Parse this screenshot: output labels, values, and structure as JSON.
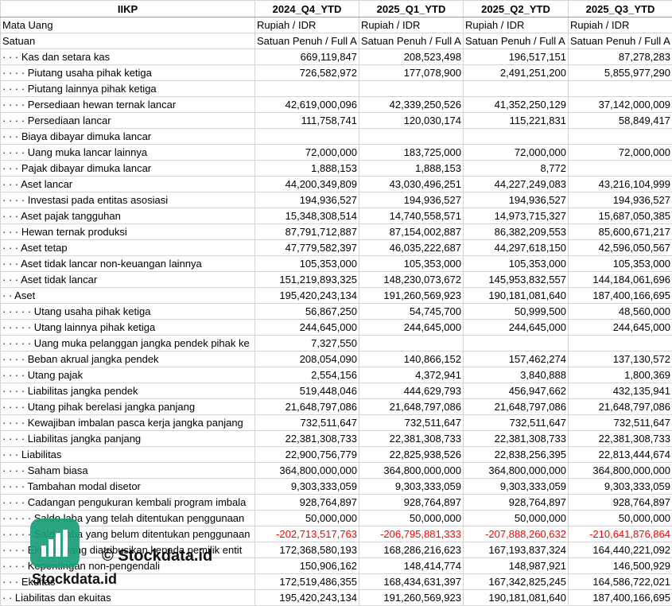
{
  "columns": [
    "IIKP",
    "2024_Q4_YTD",
    "2025_Q1_YTD",
    "2025_Q2_YTD",
    "2025_Q3_YTD"
  ],
  "meta_rows": [
    {
      "label": "Mata Uang",
      "values": [
        "Rupiah / IDR",
        "Rupiah / IDR",
        "Rupiah / IDR",
        "Rupiah / IDR"
      ]
    },
    {
      "label": "Satuan",
      "values": [
        "Satuan Penuh / Full A",
        "Satuan Penuh / Full A",
        "Satuan Penuh / Full A",
        "Satuan Penuh / Full A"
      ]
    }
  ],
  "rows": [
    {
      "label": "· · · Kas dan setara kas",
      "values": [
        "669,119,847",
        "208,523,498",
        "196,517,151",
        "87,278,283"
      ]
    },
    {
      "label": "· · · · Piutang usaha pihak ketiga",
      "values": [
        "726,582,972",
        "177,078,900",
        "2,491,251,200",
        "5,855,977,290"
      ]
    },
    {
      "label": "· · · · Piutang lainnya pihak ketiga",
      "values": [
        "",
        "",
        "",
        ""
      ]
    },
    {
      "label": "· · · · Persediaan hewan ternak lancar",
      "values": [
        "42,619,000,096",
        "42,339,250,526",
        "41,352,250,129",
        "37,142,000,009"
      ]
    },
    {
      "label": "· · · · Persediaan lancar",
      "values": [
        "111,758,741",
        "120,030,174",
        "115,221,831",
        "58,849,417"
      ]
    },
    {
      "label": "· · · Biaya dibayar dimuka lancar",
      "values": [
        "",
        "",
        "",
        ""
      ]
    },
    {
      "label": "· · · · Uang muka lancar lainnya",
      "values": [
        "72,000,000",
        "183,725,000",
        "72,000,000",
        "72,000,000"
      ]
    },
    {
      "label": "· · · Pajak dibayar dimuka lancar",
      "values": [
        "1,888,153",
        "1,888,153",
        "8,772",
        ""
      ]
    },
    {
      "label": "· · · Aset lancar",
      "values": [
        "44,200,349,809",
        "43,030,496,251",
        "44,227,249,083",
        "43,216,104,999"
      ]
    },
    {
      "label": "· · · · Investasi pada entitas asosiasi",
      "values": [
        "194,936,527",
        "194,936,527",
        "194,936,527",
        "194,936,527"
      ]
    },
    {
      "label": "· · · Aset pajak tangguhan",
      "values": [
        "15,348,308,514",
        "14,740,558,571",
        "14,973,715,327",
        "15,687,050,385"
      ]
    },
    {
      "label": "· · · Hewan ternak produksi",
      "values": [
        "87,791,712,887",
        "87,154,002,887",
        "86,382,209,553",
        "85,600,671,217"
      ]
    },
    {
      "label": "· · · Aset tetap",
      "values": [
        "47,779,582,397",
        "46,035,222,687",
        "44,297,618,150",
        "42,596,050,567"
      ]
    },
    {
      "label": "· · · Aset tidak lancar non-keuangan lainnya",
      "values": [
        "105,353,000",
        "105,353,000",
        "105,353,000",
        "105,353,000"
      ]
    },
    {
      "label": "· · · Aset tidak lancar",
      "values": [
        "151,219,893,325",
        "148,230,073,672",
        "145,953,832,557",
        "144,184,061,696"
      ]
    },
    {
      "label": "· · Aset",
      "values": [
        "195,420,243,134",
        "191,260,569,923",
        "190,181,081,640",
        "187,400,166,695"
      ]
    },
    {
      "label": "· · · · · Utang usaha pihak ketiga",
      "values": [
        "56,867,250",
        "54,745,700",
        "50,999,500",
        "48,560,000"
      ]
    },
    {
      "label": "· · · · · Utang lainnya pihak ketiga",
      "values": [
        "244,645,000",
        "244,645,000",
        "244,645,000",
        "244,645,000"
      ]
    },
    {
      "label": "· · · · · Uang muka pelanggan jangka pendek pihak ke",
      "values": [
        "7,327,550",
        "",
        "",
        ""
      ]
    },
    {
      "label": "· · · · Beban akrual jangka pendek",
      "values": [
        "208,054,090",
        "140,866,152",
        "157,462,274",
        "137,130,572"
      ]
    },
    {
      "label": "· · · · Utang pajak",
      "values": [
        "2,554,156",
        "4,372,941",
        "3,840,888",
        "1,800,369"
      ]
    },
    {
      "label": "· · · · Liabilitas jangka pendek",
      "values": [
        "519,448,046",
        "444,629,793",
        "456,947,662",
        "432,135,941"
      ]
    },
    {
      "label": "· · · · Utang pihak berelasi jangka panjang",
      "values": [
        "21,648,797,086",
        "21,648,797,086",
        "21,648,797,086",
        "21,648,797,086"
      ]
    },
    {
      "label": "· · · · Kewajiban imbalan pasca kerja jangka panjang",
      "values": [
        "732,511,647",
        "732,511,647",
        "732,511,647",
        "732,511,647"
      ]
    },
    {
      "label": "· · · · Liabilitas jangka panjang",
      "values": [
        "22,381,308,733",
        "22,381,308,733",
        "22,381,308,733",
        "22,381,308,733"
      ]
    },
    {
      "label": "· · · Liabilitas",
      "values": [
        "22,900,756,779",
        "22,825,938,526",
        "22,838,256,395",
        "22,813,444,674"
      ]
    },
    {
      "label": "· · · · Saham biasa",
      "values": [
        "364,800,000,000",
        "364,800,000,000",
        "364,800,000,000",
        "364,800,000,000"
      ]
    },
    {
      "label": "· · · · Tambahan modal disetor",
      "values": [
        "9,303,333,059",
        "9,303,333,059",
        "9,303,333,059",
        "9,303,333,059"
      ]
    },
    {
      "label": "· · · · Cadangan pengukuran kembali program imbala",
      "values": [
        "928,764,897",
        "928,764,897",
        "928,764,897",
        "928,764,897"
      ]
    },
    {
      "label": "· · · · · Saldo laba yang telah ditentukan penggunaan",
      "values": [
        "50,000,000",
        "50,000,000",
        "50,000,000",
        "50,000,000"
      ]
    },
    {
      "label": "· · · · · Saldo laba yang belum ditentukan penggunaan",
      "values": [
        "-202,713,517,763",
        "-206,795,881,333",
        "-207,888,260,632",
        "-210,641,876,864"
      ],
      "negative": true
    },
    {
      "label": "· · · · Ekuitas yang diatribusikan kepada pemilik entit",
      "values": [
        "172,368,580,193",
        "168,286,216,623",
        "167,193,837,324",
        "164,440,221,092"
      ]
    },
    {
      "label": "· · · · Kepentingan non-pengendali",
      "values": [
        "150,906,162",
        "148,414,774",
        "148,987,921",
        "146,500,929"
      ]
    },
    {
      "label": "· · · Ekuitas",
      "values": [
        "172,519,486,355",
        "168,434,631,397",
        "167,342,825,245",
        "164,586,722,021"
      ]
    },
    {
      "label": "· · Liabilitas dan ekuitas",
      "values": [
        "195,420,243,134",
        "191,260,569,923",
        "190,181,081,640",
        "187,400,166,695"
      ]
    }
  ],
  "watermark": {
    "text": "© Stockdata.id",
    "brand": "Stockdata.id",
    "logo_color": "#1a9f78"
  }
}
